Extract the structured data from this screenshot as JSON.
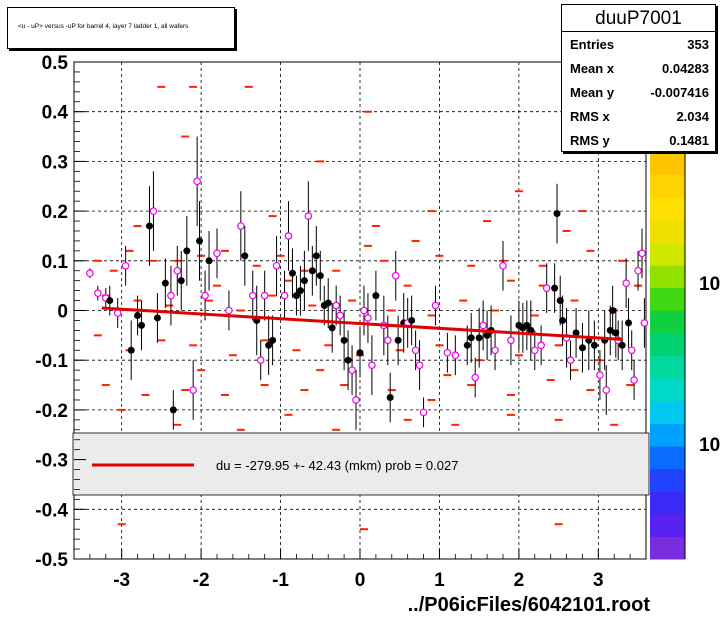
{
  "title": "<u - uP>       versus  -uP for barrel 4, layer 7 ladder 1, all wafers",
  "file_label": "../P06icFiles/6042101.root",
  "stats": {
    "name": "duuP7001",
    "rows": [
      {
        "label": "Entries",
        "value": "353"
      },
      {
        "label": "Mean x",
        "value": "0.04283"
      },
      {
        "label": "Mean y",
        "value": "-0.007416"
      },
      {
        "label": "RMS x",
        "value": "2.034"
      },
      {
        "label": "RMS y",
        "value": "0.1481"
      }
    ]
  },
  "legend": {
    "text": "du = -279.95 +- 42.43 (mkm) prob = 0.027",
    "color": "#e00000"
  },
  "colors": {
    "fit_line": "#e00000",
    "cell_marker": "#ff2200",
    "profile_open": "#ee00ee",
    "profile_filled": "#000000",
    "palette": [
      "#7a2ce0",
      "#5a22f0",
      "#3a2af8",
      "#2244ff",
      "#0a6cff",
      "#00a0ff",
      "#00c8f0",
      "#00d8c8",
      "#00d8a0",
      "#00d070",
      "#10d040",
      "#40d810",
      "#90e000",
      "#d0e800",
      "#f0e000",
      "#ffe000",
      "#ffd400",
      "#ffc400"
    ]
  },
  "chart_data": {
    "type": "scatter",
    "title": "<u - uP>       versus  -uP for barrel 4, layer 7 ladder 1, all wafers",
    "xlim": [
      -3.6,
      3.6
    ],
    "ylim": [
      -0.5,
      0.5
    ],
    "x_ticks": [
      "-3",
      "-2",
      "-1",
      "0",
      "1",
      "2",
      "3"
    ],
    "y_ticks": [
      "-0.5",
      "-0.4",
      "-0.3",
      "-0.2",
      "-0.1",
      "0",
      "0.1",
      "0.2",
      "0.3",
      "0.4",
      "0.5"
    ],
    "grid": true,
    "z_axis_labels": [
      "10",
      "10"
    ],
    "fit_line": {
      "x": [
        -3.25,
        3.3
      ],
      "y": [
        0.005,
        -0.058
      ]
    },
    "cells": [
      [
        -2.5,
        0.45
      ],
      [
        -2.1,
        0.45
      ],
      [
        -1.4,
        0.45
      ],
      [
        0.1,
        0.4
      ],
      [
        -2.2,
        0.35
      ],
      [
        -0.5,
        0.3
      ],
      [
        0.9,
        0.2
      ],
      [
        2.0,
        0.24
      ],
      [
        2.6,
        0.16
      ],
      [
        -3.3,
        0.1
      ],
      [
        -3.1,
        0.08
      ],
      [
        -2.9,
        0.12
      ],
      [
        -2.6,
        0.1
      ],
      [
        -2.3,
        0.1
      ],
      [
        -2.0,
        0.11
      ],
      [
        -1.7,
        0.12
      ],
      [
        -1.3,
        0.09
      ],
      [
        -1.0,
        0.11
      ],
      [
        -0.7,
        0.08
      ],
      [
        -0.3,
        0.08
      ],
      [
        0.1,
        0.13
      ],
      [
        0.3,
        0.1
      ],
      [
        0.7,
        0.14
      ],
      [
        1.0,
        0.11
      ],
      [
        1.4,
        0.09
      ],
      [
        1.8,
        0.1
      ],
      [
        2.3,
        0.09
      ],
      [
        2.9,
        0.12
      ],
      [
        3.3,
        0.1
      ],
      [
        -3.2,
        0.03
      ],
      [
        -2.8,
        0.02
      ],
      [
        -2.4,
        0.01
      ],
      [
        -1.9,
        0.02
      ],
      [
        -1.5,
        0.0
      ],
      [
        -1.1,
        0.03
      ],
      [
        -0.6,
        0.01
      ],
      [
        -0.1,
        0.02
      ],
      [
        0.4,
        0.0
      ],
      [
        0.9,
        -0.01
      ],
      [
        1.3,
        0.02
      ],
      [
        1.7,
        0.0
      ],
      [
        2.2,
        -0.01
      ],
      [
        2.7,
        0.02
      ],
      [
        3.2,
        0.0
      ],
      [
        -3.3,
        -0.05
      ],
      [
        -2.9,
        -0.08
      ],
      [
        -2.5,
        -0.06
      ],
      [
        -2.1,
        -0.07
      ],
      [
        -1.6,
        -0.09
      ],
      [
        -1.2,
        -0.06
      ],
      [
        -0.8,
        -0.08
      ],
      [
        -0.4,
        -0.07
      ],
      [
        0.0,
        -0.09
      ],
      [
        0.5,
        -0.08
      ],
      [
        1.0,
        -0.07
      ],
      [
        1.5,
        -0.1
      ],
      [
        2.0,
        -0.09
      ],
      [
        2.5,
        -0.07
      ],
      [
        3.0,
        -0.1
      ],
      [
        -3.2,
        -0.15
      ],
      [
        -2.7,
        -0.17
      ],
      [
        -2.2,
        -0.16
      ],
      [
        -1.7,
        -0.17
      ],
      [
        -1.2,
        -0.15
      ],
      [
        -0.7,
        -0.16
      ],
      [
        -0.2,
        -0.15
      ],
      [
        0.4,
        -0.16
      ],
      [
        0.9,
        -0.18
      ],
      [
        1.4,
        -0.15
      ],
      [
        1.9,
        -0.17
      ],
      [
        2.4,
        -0.14
      ],
      [
        2.9,
        -0.16
      ],
      [
        3.4,
        -0.15
      ],
      [
        -3.0,
        -0.2
      ],
      [
        -2.3,
        -0.23
      ],
      [
        -1.5,
        -0.24
      ],
      [
        -0.9,
        -0.21
      ],
      [
        -0.3,
        -0.24
      ],
      [
        0.6,
        -0.22
      ],
      [
        1.2,
        -0.23
      ],
      [
        1.9,
        -0.21
      ],
      [
        2.5,
        -0.22
      ],
      [
        3.2,
        -0.23
      ],
      [
        -2.8,
        0.17
      ],
      [
        -1.1,
        0.19
      ],
      [
        0.2,
        0.17
      ],
      [
        1.6,
        0.18
      ],
      [
        2.8,
        0.2
      ],
      [
        -3.0,
        -0.43
      ],
      [
        0.05,
        -0.44
      ],
      [
        2.5,
        -0.43
      ],
      [
        -1.8,
        0.05
      ],
      [
        -0.9,
        0.06
      ],
      [
        0.6,
        0.05
      ],
      [
        1.9,
        0.06
      ],
      [
        2.3,
        0.05
      ],
      [
        -2.0,
        -0.12
      ],
      [
        -0.5,
        -0.12
      ],
      [
        1.1,
        -0.13
      ],
      [
        2.7,
        -0.12
      ],
      [
        3.5,
        0.05
      ]
    ],
    "profile_points": [
      {
        "x": -3.4,
        "y": 0.075,
        "e": 0.01,
        "f": false
      },
      {
        "x": -3.3,
        "y": 0.035,
        "e": 0.015,
        "f": false
      },
      {
        "x": -3.2,
        "y": 0.025,
        "e": 0.02,
        "f": false
      },
      {
        "x": -3.15,
        "y": 0.02,
        "e": 0.03,
        "f": true
      },
      {
        "x": -3.05,
        "y": -0.005,
        "e": 0.03,
        "f": false
      },
      {
        "x": -2.95,
        "y": 0.09,
        "e": 0.04,
        "f": false
      },
      {
        "x": -2.88,
        "y": -0.08,
        "e": 0.06,
        "f": true
      },
      {
        "x": -2.8,
        "y": -0.01,
        "e": 0.04,
        "f": true
      },
      {
        "x": -2.75,
        "y": -0.03,
        "e": 0.05,
        "f": true
      },
      {
        "x": -2.65,
        "y": 0.17,
        "e": 0.08,
        "f": true
      },
      {
        "x": -2.6,
        "y": 0.2,
        "e": 0.08,
        "f": false
      },
      {
        "x": -2.55,
        "y": -0.015,
        "e": 0.05,
        "f": true
      },
      {
        "x": -2.45,
        "y": 0.055,
        "e": 0.05,
        "f": true
      },
      {
        "x": -2.38,
        "y": 0.03,
        "e": 0.06,
        "f": false
      },
      {
        "x": -2.35,
        "y": -0.2,
        "e": 0.04,
        "f": true
      },
      {
        "x": -2.3,
        "y": 0.08,
        "e": 0.05,
        "f": false
      },
      {
        "x": -2.25,
        "y": 0.06,
        "e": 0.06,
        "f": true
      },
      {
        "x": -2.18,
        "y": 0.12,
        "e": 0.07,
        "f": true
      },
      {
        "x": -2.1,
        "y": -0.16,
        "e": 0.06,
        "f": false
      },
      {
        "x": -2.05,
        "y": 0.26,
        "e": 0.09,
        "f": false
      },
      {
        "x": -2.02,
        "y": 0.14,
        "e": 0.08,
        "f": true
      },
      {
        "x": -1.95,
        "y": 0.03,
        "e": 0.05,
        "f": false
      },
      {
        "x": -1.9,
        "y": 0.1,
        "e": 0.06,
        "f": true
      },
      {
        "x": -1.8,
        "y": 0.115,
        "e": 0.05,
        "f": false
      },
      {
        "x": -1.65,
        "y": 0.0,
        "e": 0.04,
        "f": false
      },
      {
        "x": -1.5,
        "y": 0.17,
        "e": 0.07,
        "f": false
      },
      {
        "x": -1.45,
        "y": 0.11,
        "e": 0.06,
        "f": true
      },
      {
        "x": -1.35,
        "y": 0.03,
        "e": 0.05,
        "f": false
      },
      {
        "x": -1.3,
        "y": -0.02,
        "e": 0.07,
        "f": true
      },
      {
        "x": -1.25,
        "y": -0.1,
        "e": 0.04,
        "f": false
      },
      {
        "x": -1.2,
        "y": 0.03,
        "e": 0.05,
        "f": false
      },
      {
        "x": -1.15,
        "y": -0.07,
        "e": 0.06,
        "f": true
      },
      {
        "x": -1.1,
        "y": -0.06,
        "e": 0.05,
        "f": true
      },
      {
        "x": -1.05,
        "y": 0.09,
        "e": 0.06,
        "f": false
      },
      {
        "x": -0.95,
        "y": 0.03,
        "e": 0.05,
        "f": false
      },
      {
        "x": -0.9,
        "y": 0.15,
        "e": 0.07,
        "f": false
      },
      {
        "x": -0.85,
        "y": 0.075,
        "e": 0.05,
        "f": true
      },
      {
        "x": -0.8,
        "y": 0.03,
        "e": 0.04,
        "f": true
      },
      {
        "x": -0.75,
        "y": 0.04,
        "e": 0.05,
        "f": true
      },
      {
        "x": -0.7,
        "y": 0.06,
        "e": 0.06,
        "f": true
      },
      {
        "x": -0.65,
        "y": 0.19,
        "e": 0.07,
        "f": false
      },
      {
        "x": -0.6,
        "y": 0.08,
        "e": 0.05,
        "f": true
      },
      {
        "x": -0.55,
        "y": 0.11,
        "e": 0.06,
        "f": true
      },
      {
        "x": -0.5,
        "y": 0.07,
        "e": 0.05,
        "f": true
      },
      {
        "x": -0.45,
        "y": 0.01,
        "e": 0.04,
        "f": true
      },
      {
        "x": -0.4,
        "y": 0.015,
        "e": 0.05,
        "f": true
      },
      {
        "x": -0.35,
        "y": -0.035,
        "e": 0.05,
        "f": true
      },
      {
        "x": -0.3,
        "y": 0.01,
        "e": 0.04,
        "f": false
      },
      {
        "x": -0.25,
        "y": -0.01,
        "e": 0.04,
        "f": false
      },
      {
        "x": -0.2,
        "y": -0.06,
        "e": 0.06,
        "f": true
      },
      {
        "x": -0.15,
        "y": -0.1,
        "e": 0.06,
        "f": true
      },
      {
        "x": -0.1,
        "y": -0.12,
        "e": 0.05,
        "f": false
      },
      {
        "x": -0.05,
        "y": -0.18,
        "e": 0.06,
        "f": false
      },
      {
        "x": 0.0,
        "y": -0.085,
        "e": 0.05,
        "f": true
      },
      {
        "x": 0.05,
        "y": 0.0,
        "e": 0.05,
        "f": false
      },
      {
        "x": 0.1,
        "y": -0.015,
        "e": 0.05,
        "f": false
      },
      {
        "x": 0.15,
        "y": -0.11,
        "e": 0.06,
        "f": false
      },
      {
        "x": 0.2,
        "y": 0.03,
        "e": 0.05,
        "f": true
      },
      {
        "x": 0.3,
        "y": -0.03,
        "e": 0.06,
        "f": false
      },
      {
        "x": 0.35,
        "y": -0.06,
        "e": 0.05,
        "f": false
      },
      {
        "x": 0.38,
        "y": -0.175,
        "e": 0.05,
        "f": true
      },
      {
        "x": 0.45,
        "y": 0.07,
        "e": 0.05,
        "f": false
      },
      {
        "x": 0.48,
        "y": -0.06,
        "e": 0.05,
        "f": true
      },
      {
        "x": 0.55,
        "y": -0.025,
        "e": 0.06,
        "f": true
      },
      {
        "x": 0.6,
        "y": -0.025,
        "e": 0.05,
        "f": false
      },
      {
        "x": 0.65,
        "y": -0.02,
        "e": 0.05,
        "f": true
      },
      {
        "x": 0.7,
        "y": -0.08,
        "e": 0.04,
        "f": false
      },
      {
        "x": 0.75,
        "y": -0.11,
        "e": 0.05,
        "f": false
      },
      {
        "x": 0.8,
        "y": -0.205,
        "e": 0.03,
        "f": false
      },
      {
        "x": 0.95,
        "y": 0.01,
        "e": 0.04,
        "f": false
      },
      {
        "x": 1.1,
        "y": -0.085,
        "e": 0.04,
        "f": false
      },
      {
        "x": 1.2,
        "y": -0.09,
        "e": 0.04,
        "f": false
      },
      {
        "x": 1.35,
        "y": -0.07,
        "e": 0.04,
        "f": true
      },
      {
        "x": 1.4,
        "y": -0.055,
        "e": 0.05,
        "f": true
      },
      {
        "x": 1.45,
        "y": -0.135,
        "e": 0.04,
        "f": false
      },
      {
        "x": 1.5,
        "y": -0.055,
        "e": 0.06,
        "f": true
      },
      {
        "x": 1.55,
        "y": -0.03,
        "e": 0.05,
        "f": false
      },
      {
        "x": 1.6,
        "y": -0.05,
        "e": 0.05,
        "f": true
      },
      {
        "x": 1.65,
        "y": -0.04,
        "e": 0.05,
        "f": true
      },
      {
        "x": 1.7,
        "y": -0.08,
        "e": 0.04,
        "f": false
      },
      {
        "x": 1.8,
        "y": 0.09,
        "e": 0.05,
        "f": false
      },
      {
        "x": 1.9,
        "y": -0.06,
        "e": 0.05,
        "f": false
      },
      {
        "x": 2.0,
        "y": -0.03,
        "e": 0.05,
        "f": true
      },
      {
        "x": 2.05,
        "y": -0.035,
        "e": 0.05,
        "f": true
      },
      {
        "x": 2.1,
        "y": -0.03,
        "e": 0.05,
        "f": true
      },
      {
        "x": 2.15,
        "y": -0.04,
        "e": 0.06,
        "f": true
      },
      {
        "x": 2.2,
        "y": -0.08,
        "e": 0.04,
        "f": false
      },
      {
        "x": 2.28,
        "y": -0.07,
        "e": 0.04,
        "f": false
      },
      {
        "x": 2.35,
        "y": 0.045,
        "e": 0.05,
        "f": false
      },
      {
        "x": 2.45,
        "y": 0.045,
        "e": 0.05,
        "f": true
      },
      {
        "x": 2.48,
        "y": 0.195,
        "e": 0.06,
        "f": true
      },
      {
        "x": 2.52,
        "y": 0.02,
        "e": 0.05,
        "f": true
      },
      {
        "x": 2.55,
        "y": -0.02,
        "e": 0.05,
        "f": true
      },
      {
        "x": 2.6,
        "y": -0.055,
        "e": 0.06,
        "f": false
      },
      {
        "x": 2.65,
        "y": -0.1,
        "e": 0.04,
        "f": false
      },
      {
        "x": 2.72,
        "y": -0.045,
        "e": 0.05,
        "f": true
      },
      {
        "x": 2.8,
        "y": -0.075,
        "e": 0.05,
        "f": true
      },
      {
        "x": 2.88,
        "y": -0.06,
        "e": 0.06,
        "f": true
      },
      {
        "x": 2.95,
        "y": -0.07,
        "e": 0.05,
        "f": true
      },
      {
        "x": 3.02,
        "y": -0.13,
        "e": 0.05,
        "f": false
      },
      {
        "x": 3.08,
        "y": -0.06,
        "e": 0.06,
        "f": true
      },
      {
        "x": 3.1,
        "y": -0.16,
        "e": 0.05,
        "f": false
      },
      {
        "x": 3.15,
        "y": -0.04,
        "e": 0.05,
        "f": true
      },
      {
        "x": 3.18,
        "y": 0.0,
        "e": 0.05,
        "f": true
      },
      {
        "x": 3.22,
        "y": -0.045,
        "e": 0.05,
        "f": true
      },
      {
        "x": 3.25,
        "y": -0.06,
        "e": 0.04,
        "f": false
      },
      {
        "x": 3.3,
        "y": -0.07,
        "e": 0.05,
        "f": true
      },
      {
        "x": 3.35,
        "y": 0.055,
        "e": 0.05,
        "f": false
      },
      {
        "x": 3.38,
        "y": -0.025,
        "e": 0.05,
        "f": true
      },
      {
        "x": 3.42,
        "y": -0.08,
        "e": 0.04,
        "f": false
      },
      {
        "x": 3.45,
        "y": -0.14,
        "e": 0.04,
        "f": false
      },
      {
        "x": 3.5,
        "y": 0.08,
        "e": 0.04,
        "f": false
      },
      {
        "x": 3.55,
        "y": 0.115,
        "e": 0.05,
        "f": false
      },
      {
        "x": 3.58,
        "y": -0.025,
        "e": 0.05,
        "f": false
      }
    ]
  }
}
